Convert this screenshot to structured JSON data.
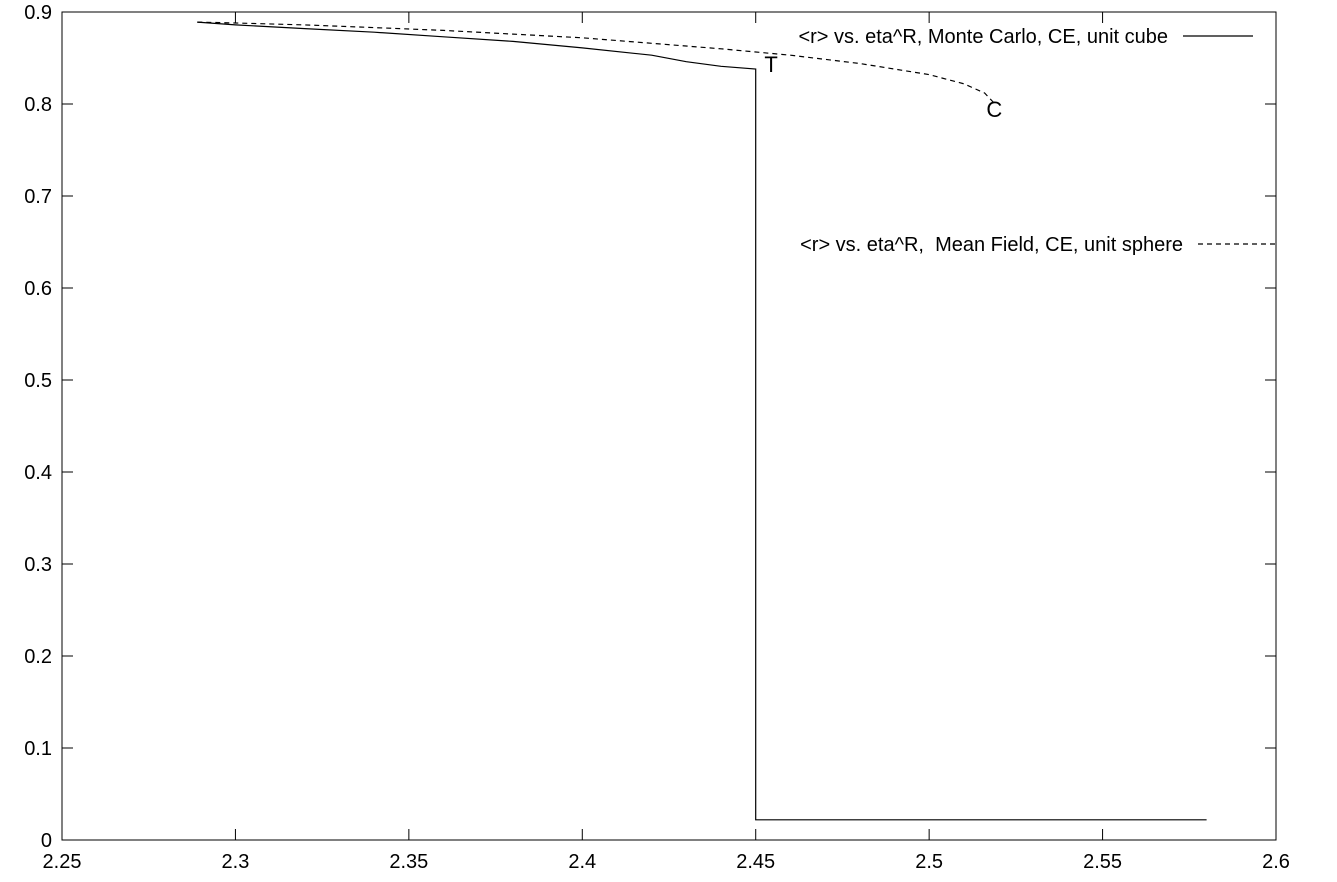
{
  "chart_data": {
    "type": "line",
    "title": "",
    "xlabel": "",
    "ylabel": "",
    "xlim": [
      2.25,
      2.6
    ],
    "ylim": [
      0,
      0.9
    ],
    "xticks": [
      "2.25",
      "2.3",
      "2.35",
      "2.4",
      "2.45",
      "2.5",
      "2.55",
      "2.6"
    ],
    "yticks": [
      "0",
      "0.1",
      "0.2",
      "0.3",
      "0.4",
      "0.5",
      "0.6",
      "0.7",
      "0.8",
      "0.9"
    ],
    "grid": false,
    "legend_position": "top-right",
    "series": [
      {
        "name": "<r> vs. eta^R, Monte Carlo, CE, unit cube",
        "style": "solid",
        "color": "#000000",
        "x": [
          2.289,
          2.3,
          2.32,
          2.34,
          2.36,
          2.38,
          2.4,
          2.42,
          2.43,
          2.44,
          2.45,
          2.45,
          2.58
        ],
        "y": [
          0.889,
          0.886,
          0.882,
          0.878,
          0.873,
          0.868,
          0.861,
          0.853,
          0.846,
          0.841,
          0.838,
          0.022,
          0.022
        ]
      },
      {
        "name": "<r> vs. eta^R,  Mean Field, CE, unit sphere",
        "style": "dashed",
        "color": "#000000",
        "x": [
          2.289,
          2.3,
          2.32,
          2.34,
          2.36,
          2.38,
          2.4,
          2.42,
          2.44,
          2.46,
          2.48,
          2.5,
          2.51,
          2.516,
          2.519
        ],
        "y": [
          0.889,
          0.888,
          0.886,
          0.883,
          0.88,
          0.876,
          0.872,
          0.866,
          0.86,
          0.853,
          0.844,
          0.832,
          0.822,
          0.812,
          0.8
        ]
      }
    ],
    "annotations": [
      {
        "text": "T",
        "x": 2.4525,
        "y": 0.837
      },
      {
        "text": "C",
        "x": 2.5165,
        "y": 0.788
      }
    ]
  }
}
